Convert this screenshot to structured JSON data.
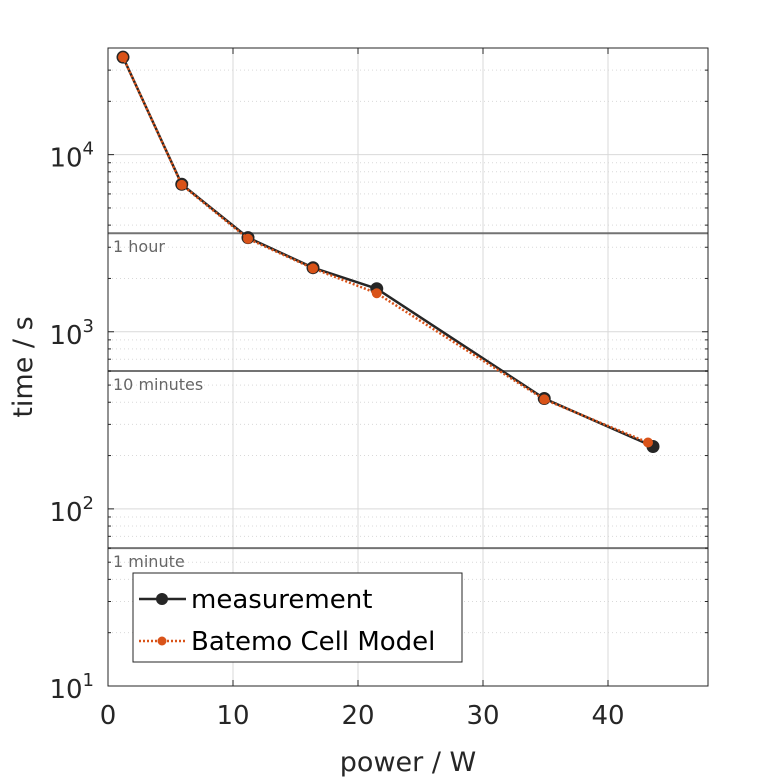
{
  "chart_data": {
    "type": "line",
    "xlabel": "power / W",
    "ylabel": "time / s",
    "x_scale": "linear",
    "y_scale": "log",
    "xlim": [
      0,
      48
    ],
    "ylim": [
      10,
      40000
    ],
    "x_ticks": [
      0,
      10,
      20,
      30,
      40
    ],
    "x_tick_labels": [
      "0",
      "10",
      "20",
      "30",
      "40"
    ],
    "y_ticks": [
      10,
      100,
      1000,
      10000
    ],
    "y_tick_labels": [
      {
        "base": "10",
        "exp": "1"
      },
      {
        "base": "10",
        "exp": "2"
      },
      {
        "base": "10",
        "exp": "3"
      },
      {
        "base": "10",
        "exp": "4"
      }
    ],
    "grid": true,
    "legend_position": "bottom-left",
    "reference_lines": [
      {
        "y": 3600,
        "label": "1 hour"
      },
      {
        "y": 600,
        "label": "10 minutes"
      },
      {
        "y": 60,
        "label": "1 minute"
      }
    ],
    "series": [
      {
        "name": "measurement",
        "color": "#262626",
        "style": "solid",
        "marker": "circle-large",
        "x": [
          1.2,
          5.9,
          11.2,
          16.4,
          21.5,
          34.9,
          43.6
        ],
        "y": [
          35500,
          6800,
          3400,
          2300,
          1750,
          420,
          225
        ]
      },
      {
        "name": "Batemo Cell Model",
        "color": "#D95319",
        "style": "dotted",
        "marker": "circle-small",
        "x": [
          1.2,
          5.9,
          11.2,
          16.4,
          21.5,
          34.9,
          43.2
        ],
        "y": [
          35500,
          6750,
          3350,
          2280,
          1650,
          415,
          237
        ]
      }
    ]
  }
}
